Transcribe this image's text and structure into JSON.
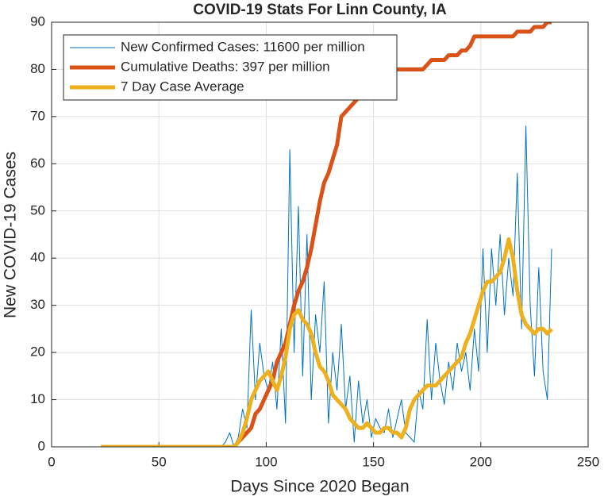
{
  "chart_data": {
    "type": "line",
    "title": "COVID-19 Stats For Linn County, IA",
    "xlabel": "Days Since 2020 Began",
    "ylabel": "New COVID-19 Cases",
    "x": [
      23,
      25,
      27,
      29,
      31,
      33,
      35,
      37,
      39,
      41,
      43,
      45,
      47,
      49,
      51,
      53,
      55,
      57,
      59,
      61,
      63,
      65,
      67,
      69,
      71,
      73,
      75,
      77,
      79,
      81,
      83,
      85,
      87,
      89,
      91,
      93,
      95,
      97,
      99,
      101,
      103,
      105,
      107,
      109,
      111,
      113,
      115,
      117,
      119,
      121,
      123,
      125,
      127,
      129,
      131,
      133,
      135,
      137,
      139,
      141,
      143,
      145,
      147,
      149,
      151,
      153,
      155,
      157,
      159,
      161,
      163,
      165,
      167,
      169,
      171,
      173,
      175,
      177,
      179,
      181,
      183,
      185,
      187,
      189,
      191,
      193,
      195,
      197,
      199,
      201,
      203,
      205,
      207,
      209,
      211,
      213,
      215,
      217,
      219,
      221,
      223,
      225,
      227,
      229,
      231,
      233
    ],
    "series": [
      {
        "name": "New Confirmed Cases: 11600 per million",
        "color": "#0072bd",
        "width": 1,
        "values": [
          0,
          0,
          0,
          0,
          0,
          0,
          0,
          0,
          0,
          0,
          0,
          0,
          0,
          0,
          0,
          0,
          0,
          0,
          0,
          0,
          0,
          0,
          0,
          0,
          0,
          0,
          0,
          0,
          0,
          1,
          3,
          0,
          2,
          8,
          4,
          29,
          10,
          22,
          15,
          12,
          18,
          8,
          25,
          5,
          63,
          20,
          51,
          15,
          45,
          10,
          28,
          20,
          35,
          5,
          20,
          12,
          26,
          8,
          15,
          1,
          14,
          5,
          10,
          2,
          6,
          4,
          3,
          8,
          2,
          6,
          10,
          3,
          2,
          1,
          12,
          8,
          27,
          10,
          22,
          14,
          9,
          18,
          12,
          22,
          16,
          20,
          12,
          25,
          16,
          42,
          20,
          42,
          30,
          45,
          28,
          40,
          32,
          58,
          25,
          68,
          30,
          15,
          38,
          16,
          10,
          42
        ]
      },
      {
        "name": "Cumulative Deaths: 397 per million",
        "color": "#d95319",
        "width": 5,
        "values": [
          0,
          0,
          0,
          0,
          0,
          0,
          0,
          0,
          0,
          0,
          0,
          0,
          0,
          0,
          0,
          0,
          0,
          0,
          0,
          0,
          0,
          0,
          0,
          0,
          0,
          0,
          0,
          0,
          0,
          0,
          0,
          0,
          1,
          2,
          3,
          4,
          7,
          8,
          10,
          12,
          14,
          18,
          20,
          22,
          26,
          30,
          33,
          35,
          38,
          42,
          47,
          52,
          56,
          58,
          61,
          64,
          70,
          71,
          72,
          73,
          74,
          76,
          77,
          78,
          79,
          80,
          80,
          80,
          80,
          80,
          80,
          80,
          80,
          80,
          80,
          80,
          81,
          82,
          82,
          82,
          82,
          83,
          83,
          83,
          84,
          84,
          85,
          87,
          87,
          87,
          87,
          87,
          87,
          87,
          87,
          87,
          87,
          88,
          88,
          88,
          88,
          89,
          89,
          89,
          90,
          90
        ]
      },
      {
        "name": "7 Day Case Average",
        "color": "#edb120",
        "width": 5,
        "values": [
          0,
          0,
          0,
          0,
          0,
          0,
          0,
          0,
          0,
          0,
          0,
          0,
          0,
          0,
          0,
          0,
          0,
          0,
          0,
          0,
          0,
          0,
          0,
          0,
          0,
          0,
          0,
          0,
          0,
          0,
          0,
          0,
          1,
          3,
          6,
          10,
          12,
          14,
          15,
          16,
          14,
          12,
          15,
          19,
          25,
          28,
          29,
          27,
          26,
          24,
          20,
          17,
          16,
          14,
          11,
          10,
          9,
          8,
          6,
          5,
          4,
          4,
          5,
          4,
          3,
          3,
          4,
          4,
          3,
          3,
          2,
          4,
          8,
          10,
          11,
          12,
          13,
          13,
          13,
          14,
          15,
          16,
          17,
          18,
          19,
          22,
          24,
          27,
          30,
          33,
          35,
          35,
          36,
          37,
          40,
          44,
          40,
          33,
          28,
          26,
          25,
          24,
          25,
          25,
          24,
          25
        ]
      }
    ],
    "xlim": [
      0,
      250
    ],
    "xticks": [
      0,
      50,
      100,
      150,
      200,
      250
    ],
    "ylim": [
      0,
      90
    ],
    "yticks": [
      0,
      10,
      20,
      30,
      40,
      50,
      60,
      70,
      80,
      90
    ],
    "grid": true,
    "legend": "top-left"
  }
}
